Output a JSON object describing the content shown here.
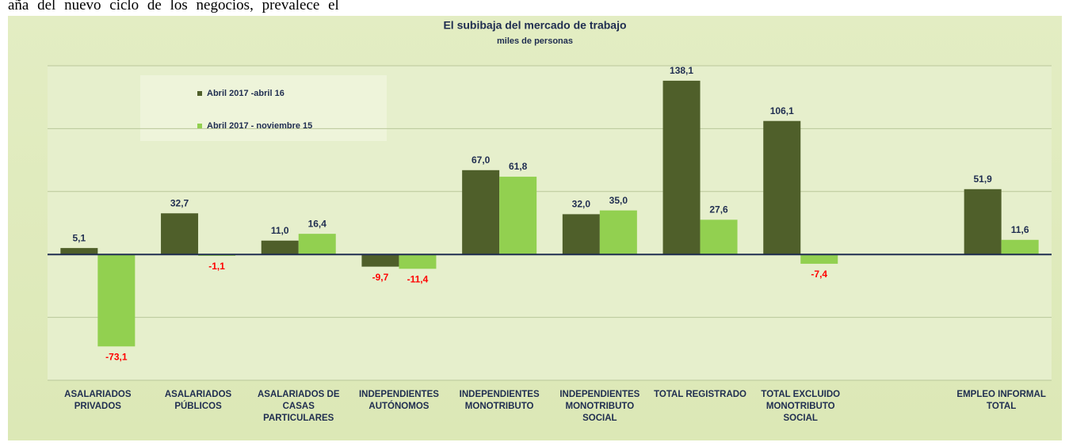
{
  "page_text": "aña del nuevo ciclo de los negocios, prevalece el",
  "chart_data": {
    "type": "bar",
    "title": "El subibaja del mercado de trabajo",
    "subtitle": "miles de personas",
    "categories": [
      "ASALARIADOS\nPRIVADOS",
      "ASALARIADOS\nPÚBLICOS",
      "ASALARIADOS DE\nCASAS\nPARTICULARES",
      "INDEPENDIENTES\nAUTÓNOMOS",
      "INDEPENDIENTES\nMONOTRIBUTO",
      "INDEPENDIENTES\nMONOTRIBUTO\nSOCIAL",
      "TOTAL REGISTRADO",
      "TOTAL EXCLUIDO\nMONOTRIBUTO\nSOCIAL",
      null,
      "EMPLEO INFORMAL\nTOTAL"
    ],
    "series": [
      {
        "name": "Abril 2017 -abril 16",
        "color": "#4f5f2a",
        "values": [
          5.1,
          32.7,
          11.0,
          -9.7,
          67.0,
          32.0,
          138.1,
          106.1,
          null,
          51.9
        ],
        "value_labels": [
          "5,1",
          "32,7",
          "11,0",
          "-9,7",
          "67,0",
          "32,0",
          "138,1",
          "106,1",
          null,
          "51,9"
        ]
      },
      {
        "name": "Abril 2017 - noviembre 15",
        "color": "#92d050",
        "values": [
          -73.1,
          -1.1,
          16.4,
          -11.4,
          61.8,
          35.0,
          27.6,
          -7.4,
          null,
          11.6
        ],
        "value_labels": [
          "-73,1",
          "-1,1",
          "16,4",
          "-11,4",
          "61,8",
          "35,0",
          "27,6",
          "-7,4",
          null,
          "11,6"
        ]
      }
    ],
    "ylim": [
      -100,
      150
    ],
    "yticks": [
      -100,
      -50,
      0,
      50,
      100,
      150
    ],
    "grid": true,
    "legend": "upper left",
    "positive_label_color": "#1f2d50",
    "negative_label_color": "#ff0000"
  }
}
